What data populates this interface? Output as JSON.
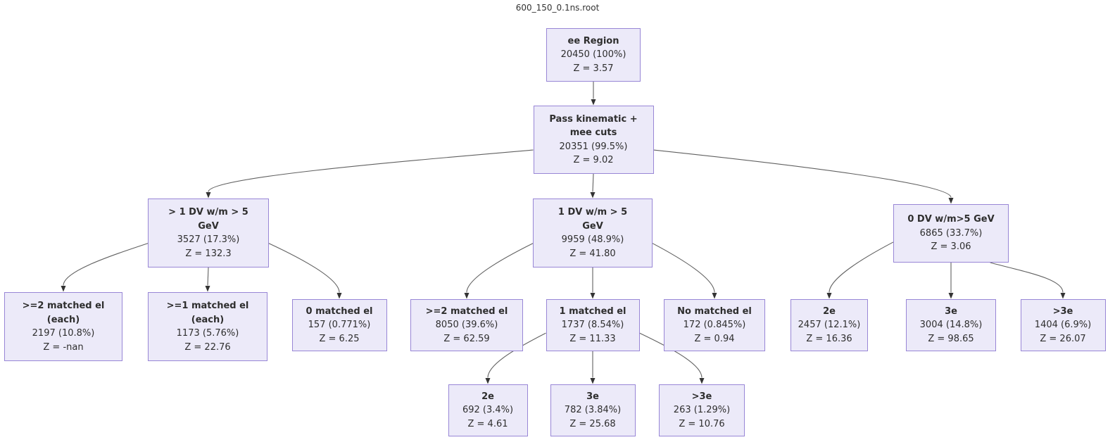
{
  "title": "600_150_0.1ns.root",
  "colors": {
    "node_fill": "#ECEAF9",
    "node_border": "#9886D6",
    "node_text": "#2E2E2E",
    "edge": "#606060",
    "arrow": "#333333"
  },
  "tree": {
    "nodes": [
      {
        "id": "root",
        "parent": null,
        "name_lines": [
          "ee Region"
        ],
        "count": "20450 (100%)",
        "z": "Z = 3.57"
      },
      {
        "id": "pass",
        "parent": "root",
        "name_lines": [
          "Pass kinematic +",
          "mee cuts"
        ],
        "count": "20351 (99.5%)",
        "z": "Z = 9.02"
      },
      {
        "id": "gt1dv",
        "parent": "pass",
        "name_lines": [
          "> 1 DV w/m > 5",
          "GeV"
        ],
        "count": "3527 (17.3%)",
        "z": "Z = 132.3"
      },
      {
        "id": "dv1",
        "parent": "pass",
        "name_lines": [
          "1 DV w/m > 5",
          "GeV"
        ],
        "count": "9959 (48.9%)",
        "z": "Z = 41.80"
      },
      {
        "id": "dv0",
        "parent": "pass",
        "name_lines": [
          "0 DV w/m>5 GeV"
        ],
        "count": "6865 (33.7%)",
        "z": "Z = 3.06"
      },
      {
        "id": "ge2each",
        "parent": "gt1dv",
        "name_lines": [
          ">=2 matched el",
          "(each)"
        ],
        "count": "2197 (10.8%)",
        "z": "Z = -nan"
      },
      {
        "id": "ge1each",
        "parent": "gt1dv",
        "name_lines": [
          ">=1 matched el",
          "(each)"
        ],
        "count": "1173 (5.76%)",
        "z": "Z = 22.76"
      },
      {
        "id": "m0",
        "parent": "gt1dv",
        "name_lines": [
          "0 matched el"
        ],
        "count": "157 (0.771%)",
        "z": "Z = 6.25"
      },
      {
        "id": "ge2",
        "parent": "dv1",
        "name_lines": [
          ">=2 matched el"
        ],
        "count": "8050 (39.6%)",
        "z": "Z = 62.59"
      },
      {
        "id": "m1",
        "parent": "dv1",
        "name_lines": [
          "1 matched el"
        ],
        "count": "1737 (8.54%)",
        "z": "Z = 11.33"
      },
      {
        "id": "nom",
        "parent": "dv1",
        "name_lines": [
          "No matched el"
        ],
        "count": "172 (0.845%)",
        "z": "Z = 0.94"
      },
      {
        "id": "e2r",
        "parent": "dv0",
        "name_lines": [
          "2e"
        ],
        "count": "2457 (12.1%)",
        "z": "Z = 16.36"
      },
      {
        "id": "e3r",
        "parent": "dv0",
        "name_lines": [
          "3e"
        ],
        "count": "3004 (14.8%)",
        "z": "Z = 98.65"
      },
      {
        "id": "gt3er",
        "parent": "dv0",
        "name_lines": [
          ">3e"
        ],
        "count": "1404 (6.9%)",
        "z": "Z = 26.07"
      },
      {
        "id": "e2b",
        "parent": "m1",
        "name_lines": [
          "2e"
        ],
        "count": "692 (3.4%)",
        "z": "Z = 4.61"
      },
      {
        "id": "e3b",
        "parent": "m1",
        "name_lines": [
          "3e"
        ],
        "count": "782 (3.84%)",
        "z": "Z = 25.68"
      },
      {
        "id": "gt3eb",
        "parent": "m1",
        "name_lines": [
          ">3e"
        ],
        "count": "263 (1.29%)",
        "z": "Z = 10.76"
      }
    ]
  }
}
